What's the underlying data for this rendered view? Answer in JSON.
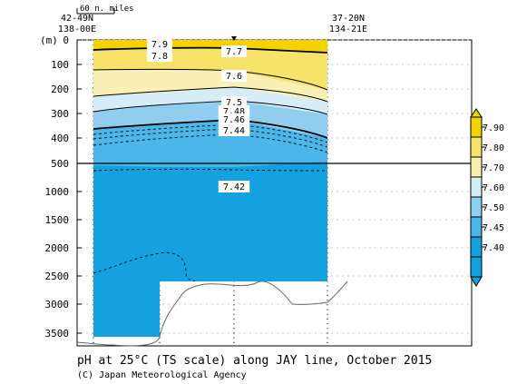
{
  "chart_data": {
    "type": "heatmap",
    "title": "pH at 25°C (TS scale) along JAY line, October 2015",
    "credit": "(C) Japan Meteorological Agency",
    "y_unit_label": "(m)",
    "scale_label": "60 n. miles",
    "endpoints": {
      "left": [
        "42-49N",
        "138-00E"
      ],
      "right": [
        "37-20N",
        "134-21E"
      ]
    },
    "upper_ticks": [
      "0",
      "100",
      "200",
      "300",
      "400",
      "500"
    ],
    "lower_ticks": [
      "1000",
      "1500",
      "2000",
      "2500",
      "3000",
      "3500"
    ],
    "contour_labels": [
      "7.9",
      "7.8",
      "7.7",
      "7.6",
      "7.5",
      "7.48",
      "7.46",
      "7.44",
      "7.42"
    ],
    "colorbar": {
      "levels": [
        "7.90",
        "7.80",
        "7.70",
        "7.60",
        "7.50",
        "7.45",
        "7.40"
      ],
      "colors": [
        "#f2d200",
        "#f8e36a",
        "#fbf0b4",
        "#d6ecf7",
        "#90cdee",
        "#4bb6e7",
        "#13a2df"
      ]
    },
    "colors": {
      "deep": "#13a2df",
      "mid": "#4bb6e7",
      "light_blue": "#90cdee",
      "pale_blue": "#d6ecf7",
      "pale_yellow": "#fbf0b4",
      "mid_yellow": "#f8e36a",
      "gold": "#f2d200"
    }
  }
}
